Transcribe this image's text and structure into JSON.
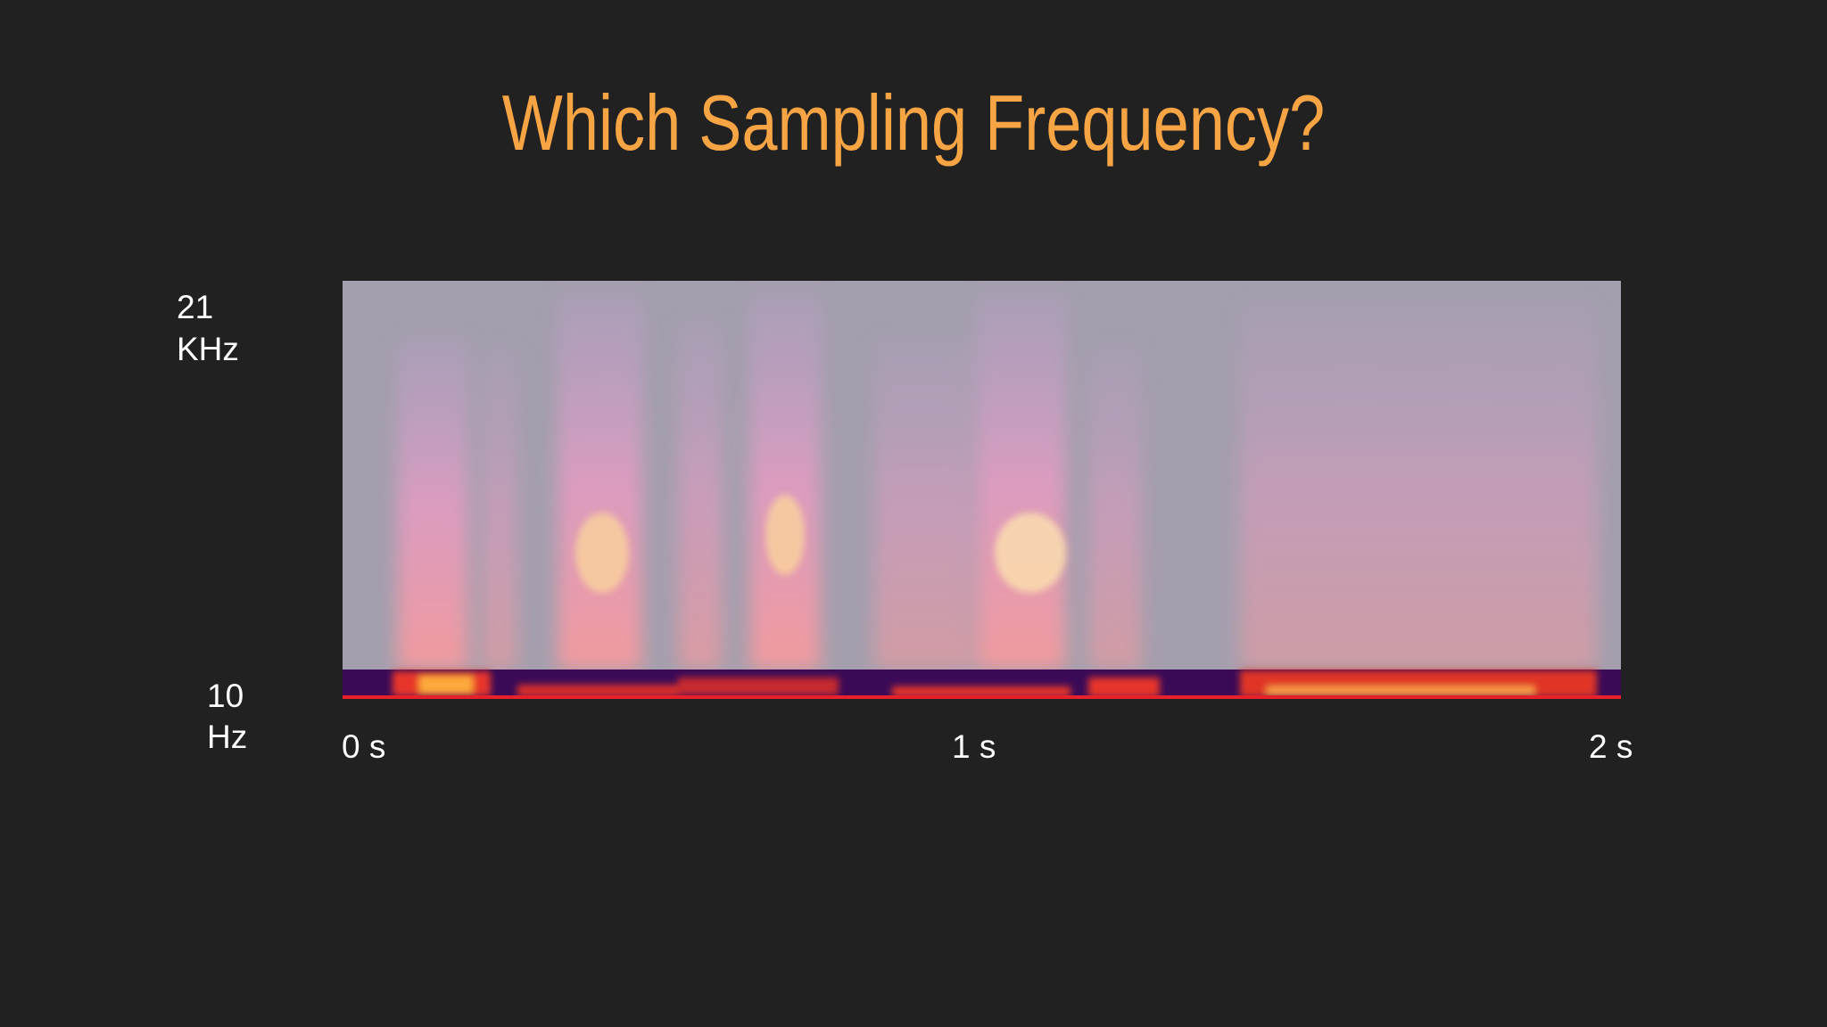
{
  "title": "Which Sampling Frequency?",
  "frequency_labels": [
    {
      "value": "21",
      "unit": "KHz"
    },
    {
      "value": "10",
      "unit": "Hz"
    }
  ],
  "time_labels": [
    "0 s",
    "1 s",
    "2 s"
  ]
}
